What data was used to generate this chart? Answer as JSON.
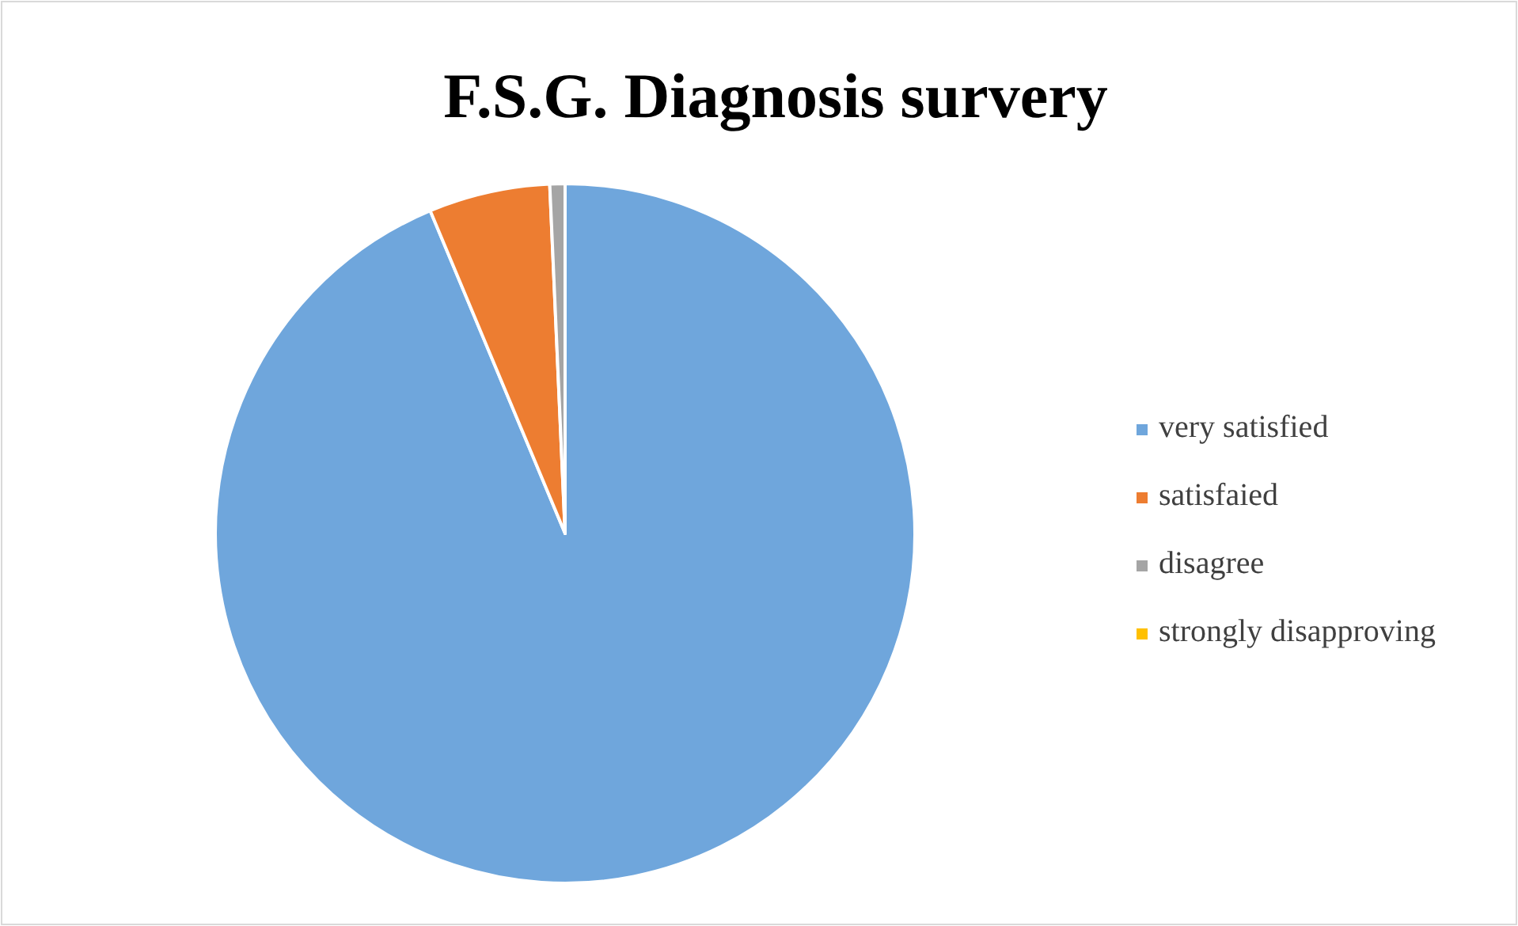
{
  "chart_data": {
    "type": "pie",
    "title": "F.S.G. Diagnosis survery",
    "categories": [
      "very satisfied",
      "satisfaied",
      "disagree",
      "strongly disapproving"
    ],
    "values": [
      93.7,
      5.6,
      0.7,
      0
    ],
    "colors": [
      "#6fa6dc",
      "#ed7d31",
      "#a5a5a5",
      "#ffc000"
    ],
    "legend": "right"
  }
}
